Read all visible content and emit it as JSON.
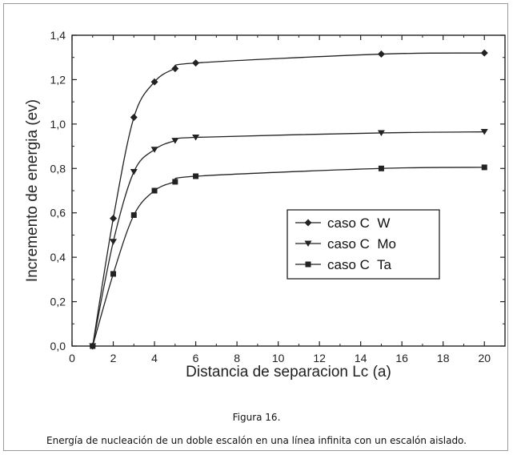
{
  "chart_data": {
    "type": "line",
    "xlabel": "Distancia de separacion Lc (a)",
    "ylabel": "Incremento de energia (ev)",
    "xlim": [
      0,
      21
    ],
    "ylim": [
      0,
      1.4
    ],
    "x_ticks": [
      "0",
      "2",
      "4",
      "6",
      "8",
      "10",
      "12",
      "14",
      "16",
      "18",
      "20"
    ],
    "y_ticks": [
      "0,0",
      "0,2",
      "0,4",
      "0,6",
      "0,8",
      "1,0",
      "1,2",
      "1,4"
    ],
    "grid": false,
    "legend_position": "center-right",
    "series": [
      {
        "name": "caso C  W",
        "marker": "diamond",
        "x": [
          1,
          2,
          3,
          4,
          5,
          6,
          15,
          20
        ],
        "y": [
          0.0,
          0.575,
          1.03,
          1.19,
          1.25,
          1.275,
          1.315,
          1.32
        ]
      },
      {
        "name": "caso C  Mo",
        "marker": "triangle-down",
        "x": [
          1,
          2,
          3,
          4,
          5,
          6,
          15,
          20
        ],
        "y": [
          0.0,
          0.47,
          0.785,
          0.885,
          0.925,
          0.94,
          0.96,
          0.965
        ]
      },
      {
        "name": "caso C  Ta",
        "marker": "square",
        "x": [
          1,
          2,
          3,
          4,
          5,
          6,
          15,
          20
        ],
        "y": [
          0.0,
          0.325,
          0.59,
          0.7,
          0.74,
          0.765,
          0.8,
          0.805
        ]
      }
    ]
  },
  "figure_label": "Figura 16.",
  "caption": "Energía de nucleación de un doble escalón en una línea infinita con un escalón aislado.",
  "colors": {
    "line": "#222222",
    "frame": "#9a9a9a"
  }
}
